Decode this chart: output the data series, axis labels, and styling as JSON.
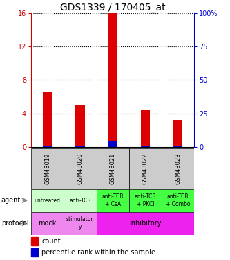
{
  "title": "GDS1339 / 170405_at",
  "samples": [
    "GSM43019",
    "GSM43020",
    "GSM43021",
    "GSM43022",
    "GSM43023"
  ],
  "count_values": [
    6.5,
    5.0,
    16.0,
    4.5,
    3.2
  ],
  "percentile_values": [
    0.8,
    0.7,
    4.0,
    0.9,
    0.5
  ],
  "left_ylim": [
    0,
    16
  ],
  "right_ylim": [
    0,
    100
  ],
  "left_yticks": [
    0,
    4,
    8,
    12,
    16
  ],
  "right_yticks": [
    0,
    25,
    50,
    75,
    100
  ],
  "right_yticklabels": [
    "0",
    "25",
    "50",
    "75",
    "100%"
  ],
  "bar_color_count": "#dd0000",
  "bar_color_pct": "#0000cc",
  "bar_width": 0.28,
  "agent_labels": [
    "untreated",
    "anti-TCR",
    "anti-TCR\n+ CsA",
    "anti-TCR\n+ PKCi",
    "anti-TCR\n+ Combo"
  ],
  "agent_bg_colors": [
    "#ccffcc",
    "#ccffcc",
    "#44ff44",
    "#44ff44",
    "#44ff44"
  ],
  "protocol_mock_color": "#ee88ee",
  "protocol_stimulatory_color": "#ee88ee",
  "protocol_inhibitory_color": "#ee22ee",
  "sample_bg_color": "#cccccc",
  "left_tick_color": "#cc0000",
  "right_tick_color": "#0000cc",
  "title_fontsize": 10,
  "tick_fontsize": 7,
  "sample_fontsize": 6,
  "agent_fontsize": 5.5,
  "proto_fontsize": 7,
  "legend_fontsize": 7
}
